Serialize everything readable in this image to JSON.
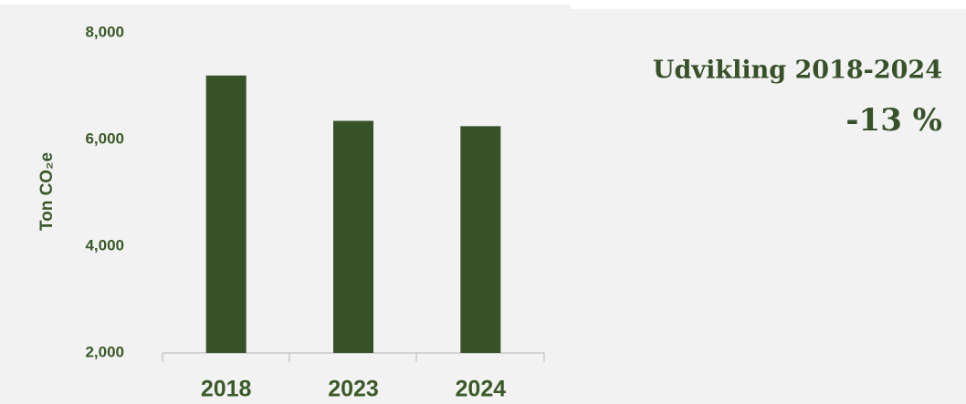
{
  "chart_data": {
    "type": "bar",
    "y_axis_label": "Ton CO₂e",
    "categories": [
      "2018",
      "2023",
      "2024"
    ],
    "values": [
      7200,
      6350,
      6250
    ],
    "color": "#375129",
    "ylim": [
      2000,
      8000
    ],
    "yticks": [
      {
        "value": 2000,
        "label": "2,000"
      },
      {
        "value": 4000,
        "label": "4,000"
      },
      {
        "value": 6000,
        "label": "6,000"
      },
      {
        "value": 8000,
        "label": "8,000"
      }
    ],
    "grid": false,
    "annotations": [
      "Udvikling 2018-2024",
      "-13 %"
    ]
  }
}
